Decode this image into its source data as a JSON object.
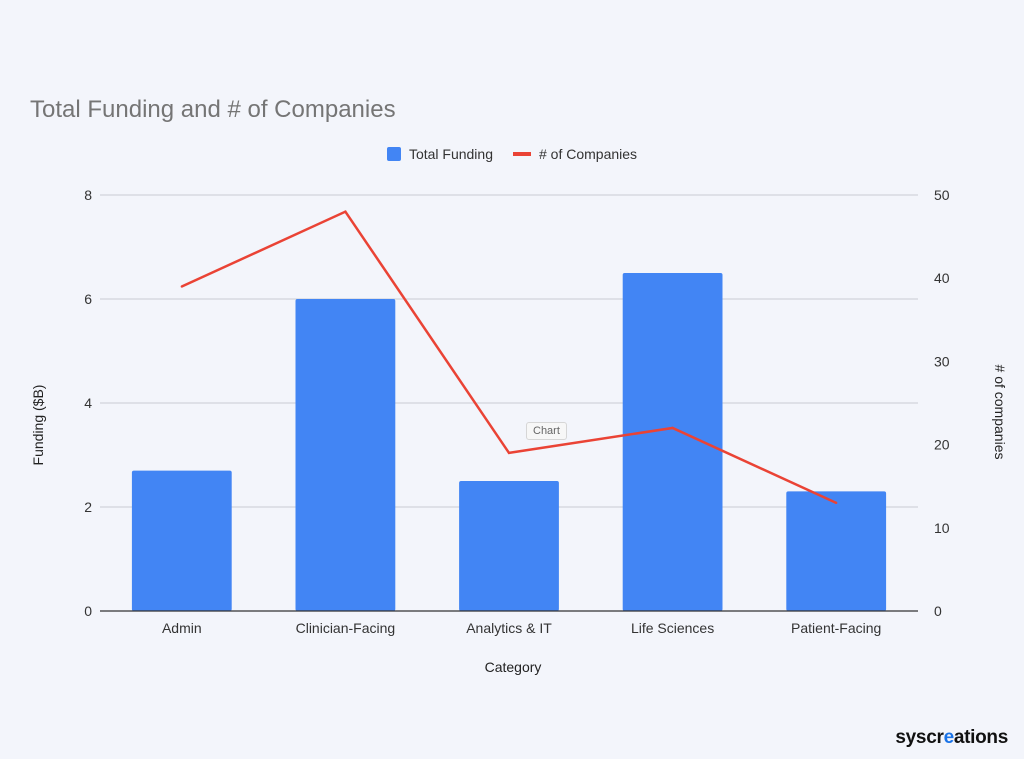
{
  "chart_data": {
    "type": "bar",
    "title": "Total Funding and # of Companies",
    "categories": [
      "Admin",
      "Clinician-Facing",
      "Analytics & IT",
      "Life Sciences",
      "Patient-Facing"
    ],
    "series": [
      {
        "name": "Total Funding",
        "type": "bar",
        "axis": "left",
        "color": "#4285f4",
        "values": [
          2.7,
          6.0,
          2.5,
          6.5,
          2.3
        ]
      },
      {
        "name": "# of Companies",
        "type": "line",
        "axis": "right",
        "color": "#ea4335",
        "values": [
          39,
          48,
          19,
          22,
          13
        ]
      }
    ],
    "xlabel": "Category",
    "ylabel": "Funding ($B)",
    "y2label": "# of companies",
    "ylim": [
      0,
      8
    ],
    "y2lim": [
      0,
      50
    ],
    "yticks": [
      "0",
      "2",
      "4",
      "6",
      "8"
    ],
    "y2ticks": [
      "0",
      "10",
      "20",
      "30",
      "40",
      "50"
    ],
    "grid": true,
    "legend": "top-center"
  },
  "tooltip": {
    "label": "Chart"
  },
  "brand": {
    "prefix": "syscr",
    "accent": "e",
    "suffix": "ations"
  }
}
